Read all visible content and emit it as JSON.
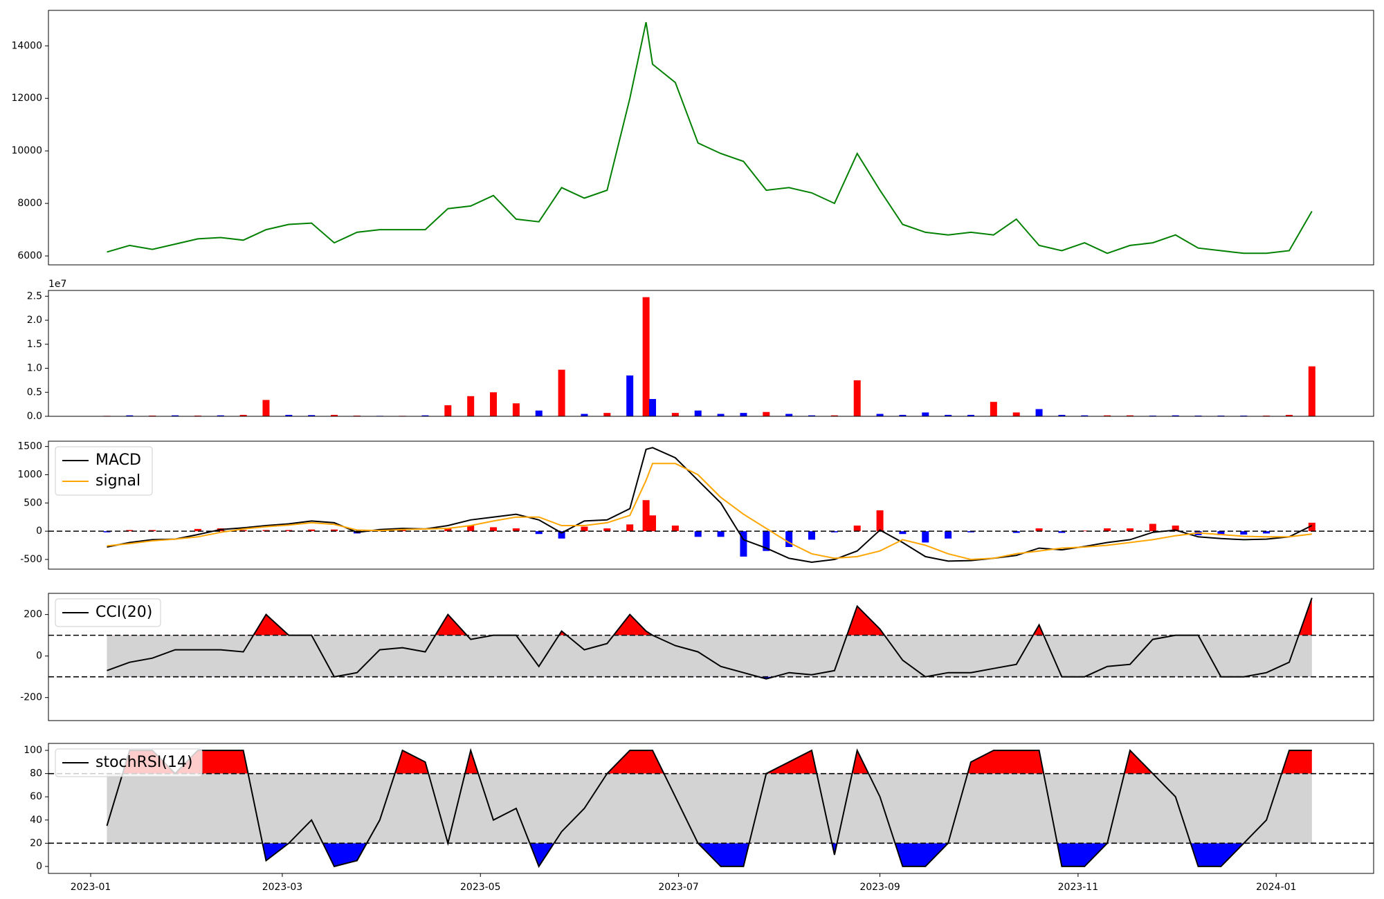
{
  "chart_data": [
    {
      "type": "line",
      "x": [
        5,
        12,
        19,
        26,
        33,
        40,
        47,
        54,
        61,
        68,
        75,
        82,
        89,
        96,
        103,
        110,
        117,
        124,
        131,
        138,
        145,
        152,
        159,
        166,
        171,
        173,
        180,
        187,
        194,
        201,
        208,
        215,
        222,
        229,
        236,
        243,
        250,
        257,
        264,
        271,
        278,
        285,
        292,
        299,
        306,
        313,
        320,
        327,
        334,
        341,
        348,
        355,
        362,
        369,
        376
      ],
      "series": [
        {
          "color": "#008000",
          "values": [
            6150,
            6400,
            6250,
            6450,
            6650,
            6700,
            6600,
            7000,
            7200,
            7250,
            6500,
            6900,
            7000,
            7000,
            7000,
            7800,
            7900,
            8300,
            7400,
            7300,
            8600,
            8200,
            8500,
            12000,
            14900,
            13300,
            12600,
            10300,
            9900,
            9600,
            8500,
            8600,
            8400,
            8000,
            9900,
            8500,
            7200,
            6900,
            6800,
            6900,
            6800,
            7400,
            6400,
            6200,
            6500,
            6100,
            6400,
            6500,
            6800,
            6300,
            6200,
            6100,
            6100,
            6200,
            7700
          ]
        }
      ],
      "xlim": [
        -13,
        395
      ],
      "ylim": [
        5660,
        15350
      ],
      "yticks": [
        6000,
        8000,
        10000,
        12000,
        14000
      ]
    },
    {
      "type": "bar",
      "x": [
        5,
        12,
        19,
        26,
        33,
        40,
        47,
        54,
        61,
        68,
        75,
        82,
        89,
        96,
        103,
        110,
        117,
        124,
        131,
        138,
        145,
        152,
        159,
        166,
        171,
        173,
        180,
        187,
        194,
        201,
        208,
        215,
        222,
        229,
        236,
        243,
        250,
        257,
        264,
        271,
        278,
        285,
        292,
        299,
        306,
        313,
        320,
        327,
        334,
        341,
        348,
        355,
        362,
        369,
        376
      ],
      "values": [
        100000,
        200000,
        150000,
        200000,
        150000,
        200000,
        300000,
        3400000,
        300000,
        250000,
        300000,
        150000,
        100000,
        100000,
        200000,
        2300000,
        4200000,
        5000000,
        2700000,
        1200000,
        9700000,
        500000,
        700000,
        8500000,
        24800000,
        3600000,
        700000,
        1200000,
        500000,
        700000,
        900000,
        500000,
        200000,
        200000,
        7500000,
        500000,
        300000,
        800000,
        300000,
        300000,
        3000000,
        800000,
        1500000,
        300000,
        200000,
        200000,
        200000,
        150000,
        200000,
        150000,
        150000,
        150000,
        150000,
        300000,
        10400000
      ],
      "colors": [
        "#ff0000",
        "#0000ff",
        "#ff0000",
        "#0000ff",
        "#ff0000",
        "#0000ff",
        "#ff0000",
        "#ff0000",
        "#0000ff",
        "#0000ff",
        "#ff0000",
        "#ff0000",
        "#0000ff",
        "#ff0000",
        "#0000ff",
        "#ff0000",
        "#ff0000",
        "#ff0000",
        "#ff0000",
        "#0000ff",
        "#ff0000",
        "#0000ff",
        "#ff0000",
        "#0000ff",
        "#ff0000",
        "#0000ff",
        "#ff0000",
        "#0000ff",
        "#0000ff",
        "#0000ff",
        "#ff0000",
        "#0000ff",
        "#0000ff",
        "#ff0000",
        "#ff0000",
        "#0000ff",
        "#0000ff",
        "#0000ff",
        "#0000ff",
        "#0000ff",
        "#ff0000",
        "#ff0000",
        "#0000ff",
        "#0000ff",
        "#0000ff",
        "#ff0000",
        "#ff0000",
        "#0000ff",
        "#0000ff",
        "#0000ff",
        "#0000ff",
        "#0000ff",
        "#ff0000",
        "#ff0000",
        "#ff0000"
      ],
      "xlim": [
        -13,
        395
      ],
      "ylim": [
        0,
        26200000
      ],
      "yticks": [
        {
          "value": 0,
          "label": "0.0"
        },
        {
          "value": 5000000,
          "label": "0.5"
        },
        {
          "value": 10000000,
          "label": "1.0"
        },
        {
          "value": 15000000,
          "label": "1.5"
        },
        {
          "value": 20000000,
          "label": "2.0"
        },
        {
          "value": 25000000,
          "label": "2.5"
        }
      ],
      "offset_label": "1e7"
    },
    {
      "type": "macd",
      "x": [
        5,
        12,
        19,
        26,
        33,
        40,
        47,
        54,
        61,
        68,
        75,
        82,
        89,
        96,
        103,
        110,
        117,
        124,
        131,
        138,
        145,
        152,
        159,
        166,
        171,
        173,
        180,
        187,
        194,
        201,
        208,
        215,
        222,
        229,
        236,
        243,
        250,
        257,
        264,
        271,
        278,
        285,
        292,
        299,
        306,
        313,
        320,
        327,
        334,
        341,
        348,
        355,
        362,
        369,
        376
      ],
      "series": [
        {
          "name": "MACD",
          "color": "#000000",
          "values": [
            -280,
            -200,
            -150,
            -140,
            -60,
            30,
            60,
            100,
            130,
            180,
            150,
            -20,
            30,
            50,
            40,
            100,
            200,
            250,
            300,
            200,
            -30,
            180,
            200,
            400,
            1450,
            1480,
            1300,
            900,
            500,
            -150,
            -300,
            -480,
            -550,
            -500,
            -350,
            20,
            -200,
            -450,
            -530,
            -520,
            -480,
            -430,
            -300,
            -330,
            -270,
            -200,
            -150,
            -20,
            20,
            -100,
            -130,
            -150,
            -140,
            -100,
            100
          ]
        },
        {
          "name": "signal",
          "color": "#ffa500",
          "values": [
            -260,
            -220,
            -170,
            -140,
            -100,
            -20,
            40,
            80,
            110,
            150,
            120,
            20,
            10,
            30,
            40,
            50,
            100,
            180,
            250,
            250,
            100,
            100,
            150,
            280,
            900,
            1200,
            1200,
            1000,
            600,
            300,
            50,
            -200,
            -400,
            -480,
            -450,
            -350,
            -150,
            -250,
            -400,
            -500,
            -480,
            -400,
            -350,
            -300,
            -280,
            -250,
            -200,
            -150,
            -80,
            -30,
            -60,
            -90,
            -100,
            -100,
            -50
          ]
        }
      ],
      "hist_values": [
        -20,
        20,
        20,
        0,
        40,
        50,
        20,
        20,
        20,
        30,
        30,
        -40,
        20,
        20,
        0,
        50,
        100,
        70,
        50,
        -50,
        -130,
        80,
        50,
        120,
        550,
        280,
        100,
        -100,
        -100,
        -450,
        -350,
        -280,
        -150,
        -20,
        100,
        370,
        -50,
        -200,
        -130,
        -20,
        0,
        -30,
        50,
        -30,
        10,
        50,
        50,
        130,
        100,
        -70,
        -70,
        -60,
        -40,
        0,
        150
      ],
      "hist_colors": [
        "#ff0000",
        "#0000ff"
      ],
      "hlines": [
        0
      ],
      "xlim": [
        -13,
        395
      ],
      "ylim": [
        -672,
        1594
      ],
      "yticks": [
        -500,
        0,
        500,
        1000,
        1500
      ],
      "legend": "upper left"
    },
    {
      "type": "oscillator",
      "x": [
        5,
        12,
        19,
        26,
        33,
        40,
        47,
        54,
        61,
        68,
        75,
        82,
        89,
        96,
        103,
        110,
        117,
        124,
        131,
        138,
        145,
        152,
        159,
        166,
        171,
        173,
        180,
        187,
        194,
        201,
        208,
        215,
        222,
        229,
        236,
        243,
        250,
        257,
        264,
        271,
        278,
        285,
        292,
        299,
        306,
        313,
        320,
        327,
        334,
        341,
        348,
        355,
        362,
        369,
        376
      ],
      "series": [
        {
          "name": "CCI(20)",
          "color": "#000000",
          "values": [
            -70,
            -30,
            -10,
            30,
            30,
            30,
            20,
            200,
            100,
            100,
            -100,
            -80,
            30,
            40,
            20,
            200,
            80,
            100,
            100,
            -50,
            120,
            30,
            60,
            200,
            120,
            100,
            50,
            20,
            -50,
            -80,
            -110,
            -80,
            -90,
            -70,
            240,
            130,
            -20,
            -100,
            -80,
            -80,
            -60,
            -40,
            150,
            -100,
            -100,
            -50,
            -40,
            80,
            100,
            100,
            -100,
            -100,
            -80,
            -30,
            280
          ]
        }
      ],
      "bands": [
        -100,
        100
      ],
      "band_color": "#d3d3d3",
      "over_color": "#ff0000",
      "under_color": "#0000ff",
      "xlim": [
        -13,
        395
      ],
      "ylim": [
        -311,
        302
      ],
      "yticks": [
        -200,
        0,
        200
      ],
      "legend": "upper left"
    },
    {
      "type": "oscillator",
      "x": [
        5,
        12,
        19,
        26,
        33,
        40,
        47,
        54,
        61,
        68,
        75,
        82,
        89,
        96,
        103,
        110,
        117,
        124,
        131,
        138,
        145,
        152,
        159,
        166,
        171,
        173,
        180,
        187,
        194,
        201,
        208,
        215,
        222,
        229,
        236,
        243,
        250,
        257,
        264,
        271,
        278,
        285,
        292,
        299,
        306,
        313,
        320,
        327,
        334,
        341,
        348,
        355,
        362,
        369,
        376
      ],
      "series": [
        {
          "name": "stochRSI(14)",
          "color": "#000000",
          "values": [
            35,
            100,
            100,
            80,
            100,
            100,
            100,
            5,
            20,
            40,
            0,
            5,
            40,
            100,
            90,
            20,
            100,
            40,
            50,
            0,
            30,
            50,
            80,
            100,
            100,
            100,
            60,
            20,
            0,
            0,
            80,
            90,
            100,
            10,
            100,
            60,
            0,
            0,
            20,
            90,
            100,
            100,
            100,
            0,
            0,
            20,
            100,
            80,
            60,
            0,
            0,
            20,
            40,
            100,
            100
          ]
        }
      ],
      "bands": [
        20,
        80
      ],
      "band_color": "#d3d3d3",
      "over_color": "#ff0000",
      "under_color": "#0000ff",
      "xlim": [
        -13,
        395
      ],
      "ylim": [
        -6,
        106
      ],
      "yticks": [
        0,
        20,
        40,
        60,
        80,
        100
      ],
      "xticks": [
        {
          "value": 0,
          "label": "2023-01"
        },
        {
          "value": 59,
          "label": "2023-03"
        },
        {
          "value": 120,
          "label": "2023-05"
        },
        {
          "value": 181,
          "label": "2023-07"
        },
        {
          "value": 243,
          "label": "2023-09"
        },
        {
          "value": 304,
          "label": "2023-11"
        },
        {
          "value": 365,
          "label": "2024-01"
        }
      ],
      "legend": "upper left"
    }
  ]
}
